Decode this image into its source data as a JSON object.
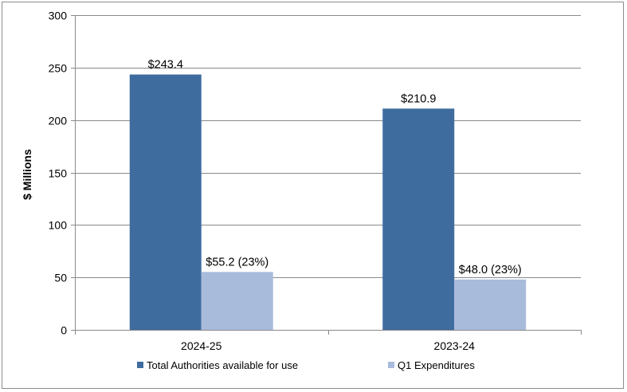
{
  "chart_data": {
    "type": "bar",
    "title": "",
    "xlabel": "",
    "ylabel": "$ Millions",
    "ylim": [
      0,
      300
    ],
    "yticks": [
      0,
      50,
      100,
      150,
      200,
      250,
      300
    ],
    "ytick_labels": [
      "0",
      "50",
      "100",
      "150",
      "200",
      "250",
      "300"
    ],
    "categories": [
      "2024-25",
      "2023-24"
    ],
    "grid": true,
    "legend_position": "bottom",
    "series": [
      {
        "name": "Total Authorities available for use",
        "color": "#3F6C9E",
        "values": [
          243.4,
          210.9
        ],
        "labels": [
          "$243.4",
          "$210.9"
        ]
      },
      {
        "name": "Q1 Expenditures",
        "color": "#A9BBDB",
        "values": [
          55.2,
          48.0
        ],
        "labels": [
          "$55.2 (23%)",
          "$48.0 (23%)"
        ]
      }
    ]
  }
}
